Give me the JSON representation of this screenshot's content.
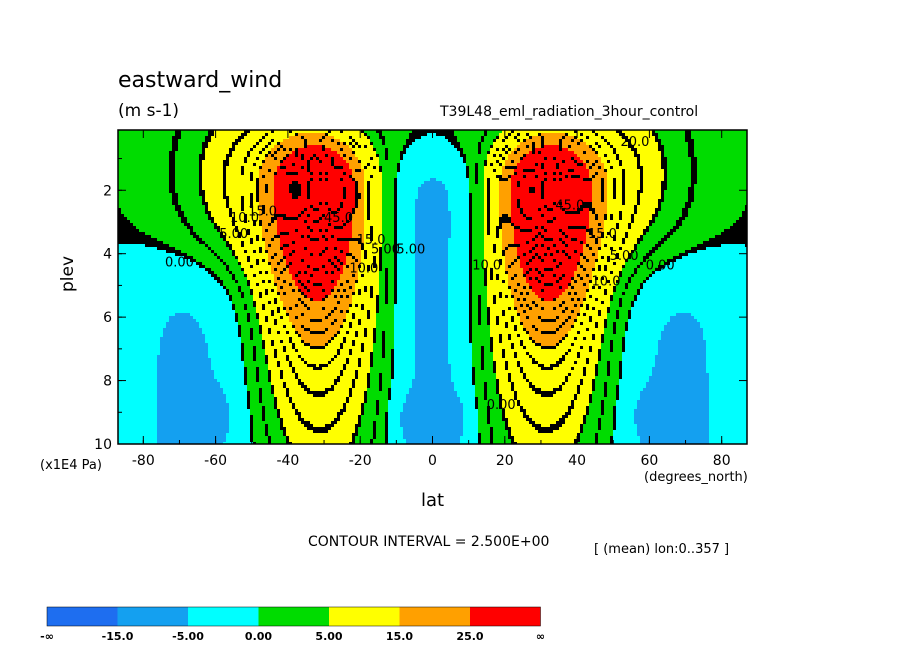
{
  "chart_data": {
    "type": "contour",
    "title": "eastward_wind",
    "units": "(m s-1)",
    "experiment": "T39L48_eml_radiation_3hour_control",
    "xlabel": "lat",
    "ylabel": "plev",
    "x_units": "(degrees_north)",
    "y_units": "(x1E4 Pa)",
    "xlim": [
      -87,
      87
    ],
    "ylim": [
      10,
      0.1
    ],
    "x_ticks": [
      -80,
      -60,
      -40,
      -20,
      0,
      20,
      40,
      60,
      80
    ],
    "x_tick_labels": [
      "-80",
      "-60",
      "-40",
      "-20",
      "0",
      "20",
      "40",
      "60",
      "80"
    ],
    "y_ticks": [
      2,
      4,
      6,
      8,
      10
    ],
    "y_tick_labels": [
      "2",
      "4",
      "6",
      "8",
      "10"
    ],
    "contour_interval_text": "CONTOUR INTERVAL = 2.500E+00",
    "mean_text": "[ (mean) lon:0..357 ]",
    "jets": [
      {
        "lat": -32,
        "plev": 1.8,
        "max_speed": 45
      },
      {
        "lat": 32,
        "plev": 1.8,
        "max_speed": 45
      }
    ],
    "contour_labels": [
      {
        "text": "0.00",
        "lat": -70,
        "plev": 4.4
      },
      {
        "text": "5.00",
        "lat": -55,
        "plev": 3.5
      },
      {
        "text": "10.0",
        "lat": -52,
        "plev": 3.0
      },
      {
        "text": "15.0",
        "lat": -47,
        "plev": 2.8
      },
      {
        "text": "45.0",
        "lat": -26,
        "plev": 3.0
      },
      {
        "text": "15.0",
        "lat": -17,
        "plev": 3.7
      },
      {
        "text": "10.0",
        "lat": -19,
        "plev": 4.6
      },
      {
        "text": "5.00",
        "lat": -13,
        "plev": 4.0
      },
      {
        "text": "5.00",
        "lat": -6,
        "plev": 4.0
      },
      {
        "text": "10.0",
        "lat": 15,
        "plev": 4.5
      },
      {
        "text": "45.0",
        "lat": 38,
        "plev": 2.6
      },
      {
        "text": "15.0",
        "lat": 47,
        "plev": 3.5
      },
      {
        "text": "10.0",
        "lat": 48,
        "plev": 5.0
      },
      {
        "text": "5.00",
        "lat": 53,
        "plev": 4.2
      },
      {
        "text": "0.00",
        "lat": 63,
        "plev": 4.5
      },
      {
        "text": "0.00",
        "lat": 19,
        "plev": 8.9
      },
      {
        "text": "20.0",
        "lat": 56,
        "plev": 0.6
      }
    ],
    "colorbar": {
      "levels": [
        "-∞",
        "-15.0",
        "-5.00",
        "0.00",
        "5.00",
        "15.0",
        "25.0",
        "∞"
      ],
      "colors": [
        "#1e6ef0",
        "#14a0f0",
        "#00ffff",
        "#00dc00",
        "#ffff00",
        "#ffa000",
        "#ff0000"
      ]
    }
  }
}
